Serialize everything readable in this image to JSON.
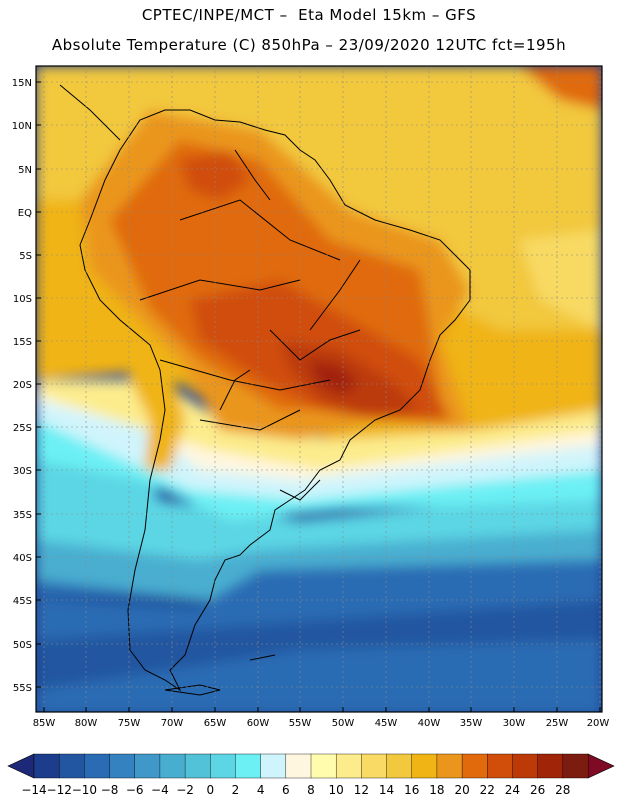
{
  "title_line1": "CPTEC/INPE/MCT –  Eta Model 15km – GFS",
  "title_line2": "Absolute Temperature (C) 850hPa – 23/09/2020 12UTC fct=195h",
  "lat_labels": [
    "15N",
    "10N",
    "5N",
    "EQ",
    "5S",
    "10S",
    "15S",
    "20S",
    "25S",
    "30S",
    "35S",
    "40S",
    "45S",
    "50S",
    "55S"
  ],
  "lon_labels": [
    "85W",
    "80W",
    "75W",
    "70W",
    "65W",
    "60W",
    "55W",
    "50W",
    "45W",
    "40W",
    "35W",
    "30W",
    "25W",
    "20W"
  ],
  "colorbar": {
    "labels": [
      "-14",
      "-12",
      "-10",
      "-8",
      "-6",
      "-4",
      "-2",
      "0",
      "2",
      "4",
      "6",
      "8",
      "10",
      "12",
      "14",
      "16",
      "18",
      "20",
      "22",
      "24",
      "26",
      "28"
    ],
    "colors": [
      "#1c3c8c",
      "#2356a0",
      "#2a6cb4",
      "#3582c0",
      "#3f98c8",
      "#48aed0",
      "#52c2d8",
      "#5cd6e4",
      "#6cf0f4",
      "#d0f4fc",
      "#fff6e0",
      "#fffcae",
      "#fcec8c",
      "#f8da64",
      "#f2c83e",
      "#f0b414",
      "#ea961c",
      "#e06a0c",
      "#d04e0a",
      "#bc3a08",
      "#a02408",
      "#7c1c10"
    ],
    "min_color": "#1e2878",
    "max_color": "#7e0a24"
  }
}
